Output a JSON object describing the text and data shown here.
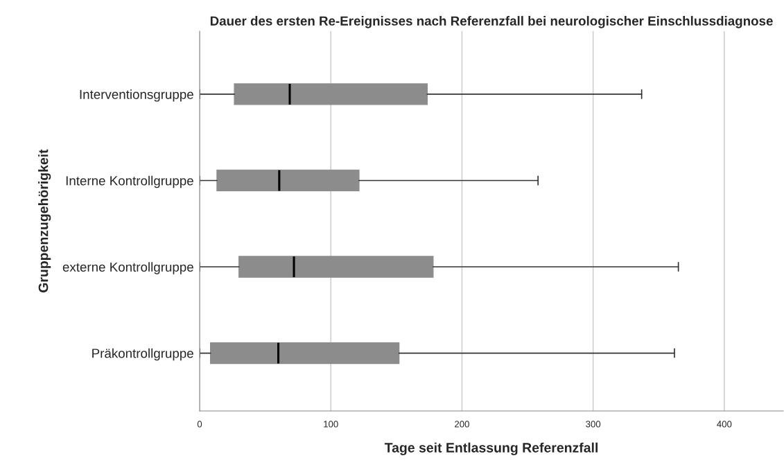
{
  "chart_data": {
    "type": "box",
    "orientation": "horizontal",
    "title": "Dauer des ersten Re-Ereignisses nach Referenzfall bei neurologischer Einschlussdiagnose",
    "xlabel": "Tage seit Entlassung Referenzfall",
    "ylabel": "Gruppenzugehörigkeit",
    "categories": [
      "Interventionsgruppe",
      "Interne Kontrollgruppe",
      "externe Kontrollgruppe",
      "Präkontrollgruppe"
    ],
    "color": "#8c8c8c",
    "boxes": [
      {
        "low": 0,
        "q1": 26.5,
        "median": 68.7,
        "q3": 173.5,
        "high": 337
      },
      {
        "low": 0,
        "q1": 13.2,
        "median": 60.7,
        "q3": 121.5,
        "high": 258
      },
      {
        "low": 0,
        "q1": 30,
        "median": 71.9,
        "q3": 178,
        "high": 365
      },
      {
        "low": 0,
        "q1": 8.3,
        "median": 60,
        "q3": 152,
        "high": 362
      }
    ],
    "xlim": [
      0,
      445
    ],
    "xticks": [
      0,
      100,
      200,
      300,
      400
    ],
    "grid": "x"
  }
}
